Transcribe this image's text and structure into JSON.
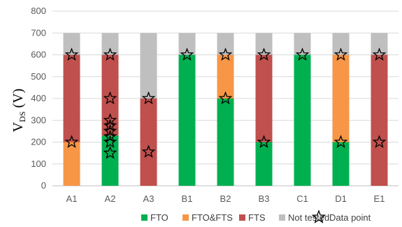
{
  "chart_data": {
    "type": "bar",
    "stacked": true,
    "categories": [
      "A1",
      "A2",
      "A3",
      "B1",
      "B2",
      "B3",
      "C1",
      "D1",
      "E1"
    ],
    "ylim": [
      0,
      800
    ],
    "yticks": [
      0,
      100,
      200,
      300,
      400,
      500,
      600,
      700,
      800
    ],
    "ylabel_main": "V",
    "ylabel_sub": "DS",
    "ylabel_unit": " (V)",
    "grid": true,
    "legend_position": "bottom",
    "colors": {
      "FTO": "#00B050",
      "FTO&FTS": "#F79646",
      "FTS": "#C0504D",
      "Not tested": "#BFBFBF"
    },
    "series": [
      {
        "name": "FTO",
        "values": [
          0,
          230,
          0,
          600,
          400,
          200,
          600,
          200,
          0
        ]
      },
      {
        "name": "FTO&FTS",
        "values": [
          200,
          0,
          0,
          0,
          200,
          0,
          0,
          400,
          0
        ]
      },
      {
        "name": "FTS",
        "values": [
          400,
          370,
          400,
          0,
          0,
          400,
          0,
          0,
          600
        ]
      },
      {
        "name": "Not tested",
        "values": [
          100,
          100,
          300,
          100,
          100,
          100,
          100,
          100,
          100
        ]
      }
    ],
    "data_points": [
      {
        "category": "A1",
        "values": [
          200,
          600
        ]
      },
      {
        "category": "A2",
        "values": [
          150,
          200,
          225,
          250,
          275,
          300,
          400,
          600
        ]
      },
      {
        "category": "A3",
        "values": [
          155,
          400
        ]
      },
      {
        "category": "B1",
        "values": [
          600
        ]
      },
      {
        "category": "B2",
        "values": [
          400,
          600
        ]
      },
      {
        "category": "B3",
        "values": [
          200,
          600
        ]
      },
      {
        "category": "C1",
        "values": [
          600
        ]
      },
      {
        "category": "D1",
        "values": [
          200,
          600
        ]
      },
      {
        "category": "E1",
        "values": [
          200,
          600
        ]
      }
    ],
    "legend": [
      "FTO",
      "FTO&FTS",
      "FTS",
      "Not tested",
      "Data point"
    ]
  }
}
